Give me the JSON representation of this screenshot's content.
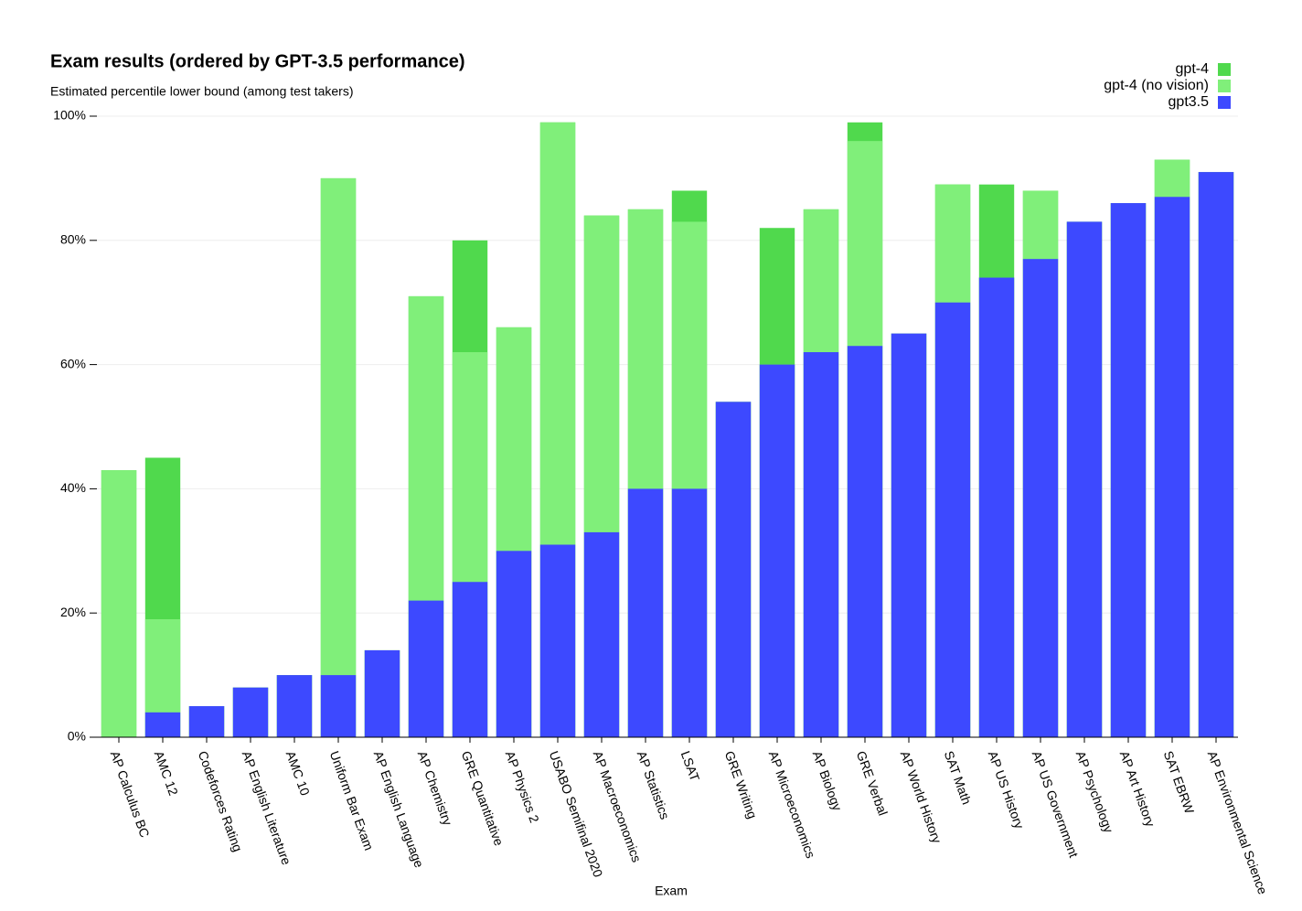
{
  "chart_data": {
    "type": "bar",
    "title": "Exam results (ordered by GPT-3.5 performance)",
    "subtitle": "Estimated percentile lower bound (among test takers)",
    "x_label": "Exam",
    "categories": [
      "AP Calculus BC",
      "AMC 12",
      "Codeforces Rating",
      "AP English Literature",
      "AMC 10",
      "Uniform Bar Exam",
      "AP English Language",
      "AP Chemistry",
      "GRE Quantitative",
      "AP Physics 2",
      "USABO Semifinal 2020",
      "AP Macroeconomics",
      "AP Statistics",
      "LSAT",
      "GRE Writing",
      "AP Microeconomics",
      "AP Biology",
      "GRE Verbal",
      "AP World History",
      "SAT Math",
      "AP US History",
      "AP US Government",
      "AP Psychology",
      "AP Art History",
      "SAT EBRW",
      "AP Environmental Science"
    ],
    "series": [
      {
        "name": "gpt-4",
        "color": "#50d94d",
        "values": [
          43,
          45,
          5,
          8,
          10,
          90,
          14,
          71,
          80,
          66,
          99,
          84,
          85,
          88,
          54,
          82,
          85,
          99,
          65,
          89,
          89,
          88,
          83,
          86,
          93,
          91
        ]
      },
      {
        "name": "gpt-4 (no vision)",
        "color": "#80ef7a",
        "values": [
          43,
          19,
          5,
          8,
          10,
          90,
          14,
          71,
          62,
          66,
          99,
          84,
          85,
          83,
          54,
          60,
          85,
          96,
          65,
          89,
          74,
          88,
          83,
          86,
          93,
          91
        ]
      },
      {
        "name": "gpt3.5",
        "color": "#3d49ff",
        "values": [
          0,
          4,
          5,
          8,
          10,
          10,
          14,
          22,
          25,
          30,
          31,
          33,
          40,
          40,
          54,
          60,
          62,
          63,
          65,
          70,
          74,
          77,
          83,
          86,
          87,
          91
        ]
      }
    ],
    "ylim": [
      0,
      100
    ],
    "yticks": [
      {
        "value": 0,
        "label": "0%"
      },
      {
        "value": 20,
        "label": "20%"
      },
      {
        "value": 40,
        "label": "40%"
      },
      {
        "value": 60,
        "label": "60%"
      },
      {
        "value": 80,
        "label": "80%"
      },
      {
        "value": 100,
        "label": "100%"
      }
    ],
    "grid": true,
    "legend": "top-right",
    "overlap": true
  }
}
